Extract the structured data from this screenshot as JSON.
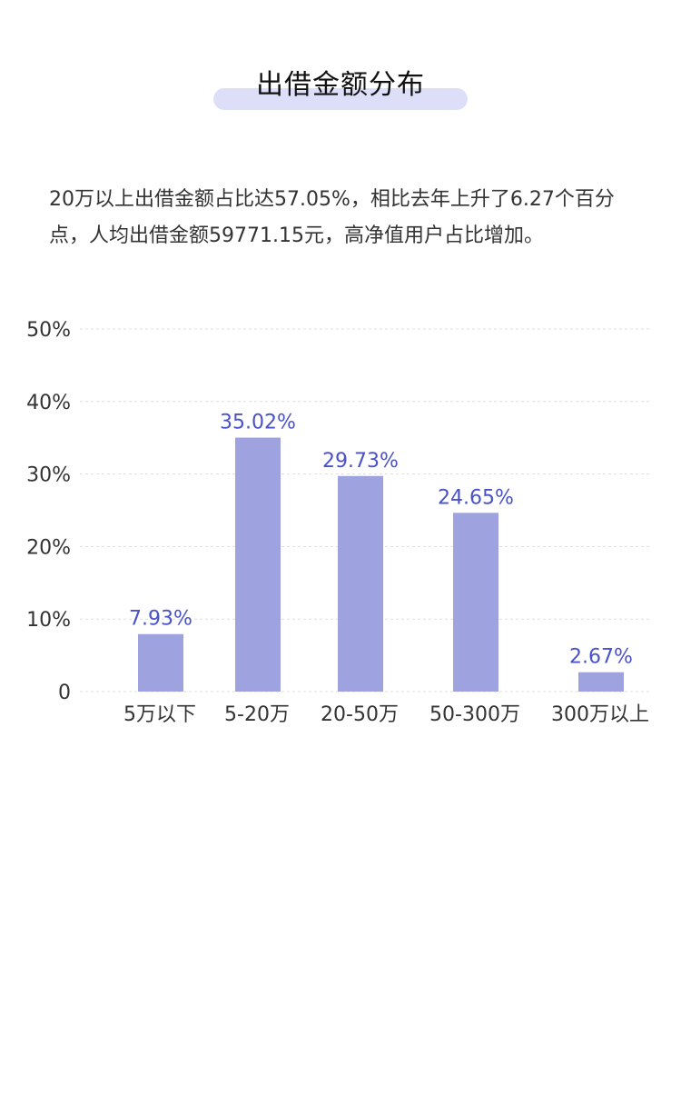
{
  "header": {
    "title": "出借金额分布"
  },
  "summary": {
    "text": "20万以上出借金额占比达57.05%，相比去年上升了6.27个百分点，人均出借金额59771.15元，高净值用户占比增加。"
  },
  "colors": {
    "bar": "#9ea3e0",
    "data_label": "#4a52c9",
    "title_highlight": "#dcdff7",
    "grid": "#dddddd"
  },
  "chart_data": {
    "type": "bar",
    "categories": [
      "5万以下",
      "5-20万",
      "20-50万",
      "50-300万",
      "300万以上"
    ],
    "values": [
      7.93,
      35.02,
      29.73,
      24.65,
      2.67
    ],
    "data_labels": [
      "7.93%",
      "35.02%",
      "29.73%",
      "24.65%",
      "2.67%"
    ],
    "ylim": [
      0,
      50
    ],
    "yticks": [
      0,
      10,
      20,
      30,
      40,
      50
    ],
    "ytick_labels": [
      "0",
      "10%",
      "20%",
      "30%",
      "40%",
      "50%"
    ],
    "grid": true,
    "title": "",
    "xlabel": "",
    "ylabel": ""
  }
}
